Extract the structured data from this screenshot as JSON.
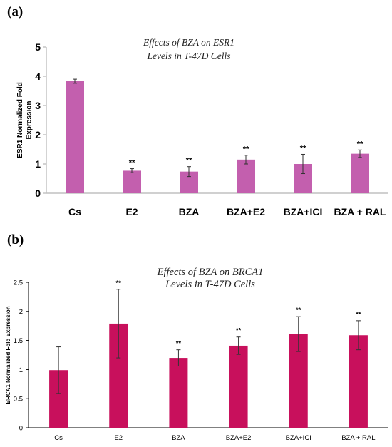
{
  "chart_data": [
    {
      "panel": "(a)",
      "type": "bar",
      "title_lines": [
        "Effects of BZA on ESR1",
        "Levels in T-47D Cells"
      ],
      "ylabel_lines": [
        "ESR1 Normalized Fold",
        "Expression"
      ],
      "xlabel": "",
      "categories": [
        "Cs",
        "E2",
        "BZA",
        "BZA+E2",
        "BZA+ICI",
        "BZA + RAL"
      ],
      "values": [
        3.83,
        0.77,
        0.74,
        1.15,
        1.0,
        1.35
      ],
      "errors": [
        0.07,
        0.07,
        0.17,
        0.15,
        0.33,
        0.13
      ],
      "significance": [
        "",
        "**",
        "**",
        "**",
        "**",
        "**"
      ],
      "ylim": [
        0,
        5
      ],
      "yticks": [
        "0",
        "1",
        "2",
        "3",
        "4",
        "5"
      ],
      "bar_color": "#c35fae",
      "grid": false
    },
    {
      "panel": "(b)",
      "type": "bar",
      "title_lines": [
        "Effects of BZA on BRCA1",
        "Levels in T-47D Cells"
      ],
      "ylabel_lines": [
        "BRCA1 Normalized Fold Expression"
      ],
      "xlabel": "",
      "categories": [
        "Cs",
        "E2",
        "BZA",
        "BZA+E2",
        "BZA+ICI",
        "BZA + RAL"
      ],
      "values": [
        0.99,
        1.79,
        1.2,
        1.41,
        1.61,
        1.59
      ],
      "errors": [
        0.4,
        0.59,
        0.14,
        0.15,
        0.3,
        0.25
      ],
      "significance": [
        "",
        "**",
        "**",
        "**",
        "**",
        "**"
      ],
      "ylim": [
        0,
        2.5
      ],
      "yticks": [
        "0",
        "0.5",
        "1",
        "1.5",
        "2",
        "2.5"
      ],
      "bar_color": "#c8105c",
      "grid": false
    }
  ]
}
